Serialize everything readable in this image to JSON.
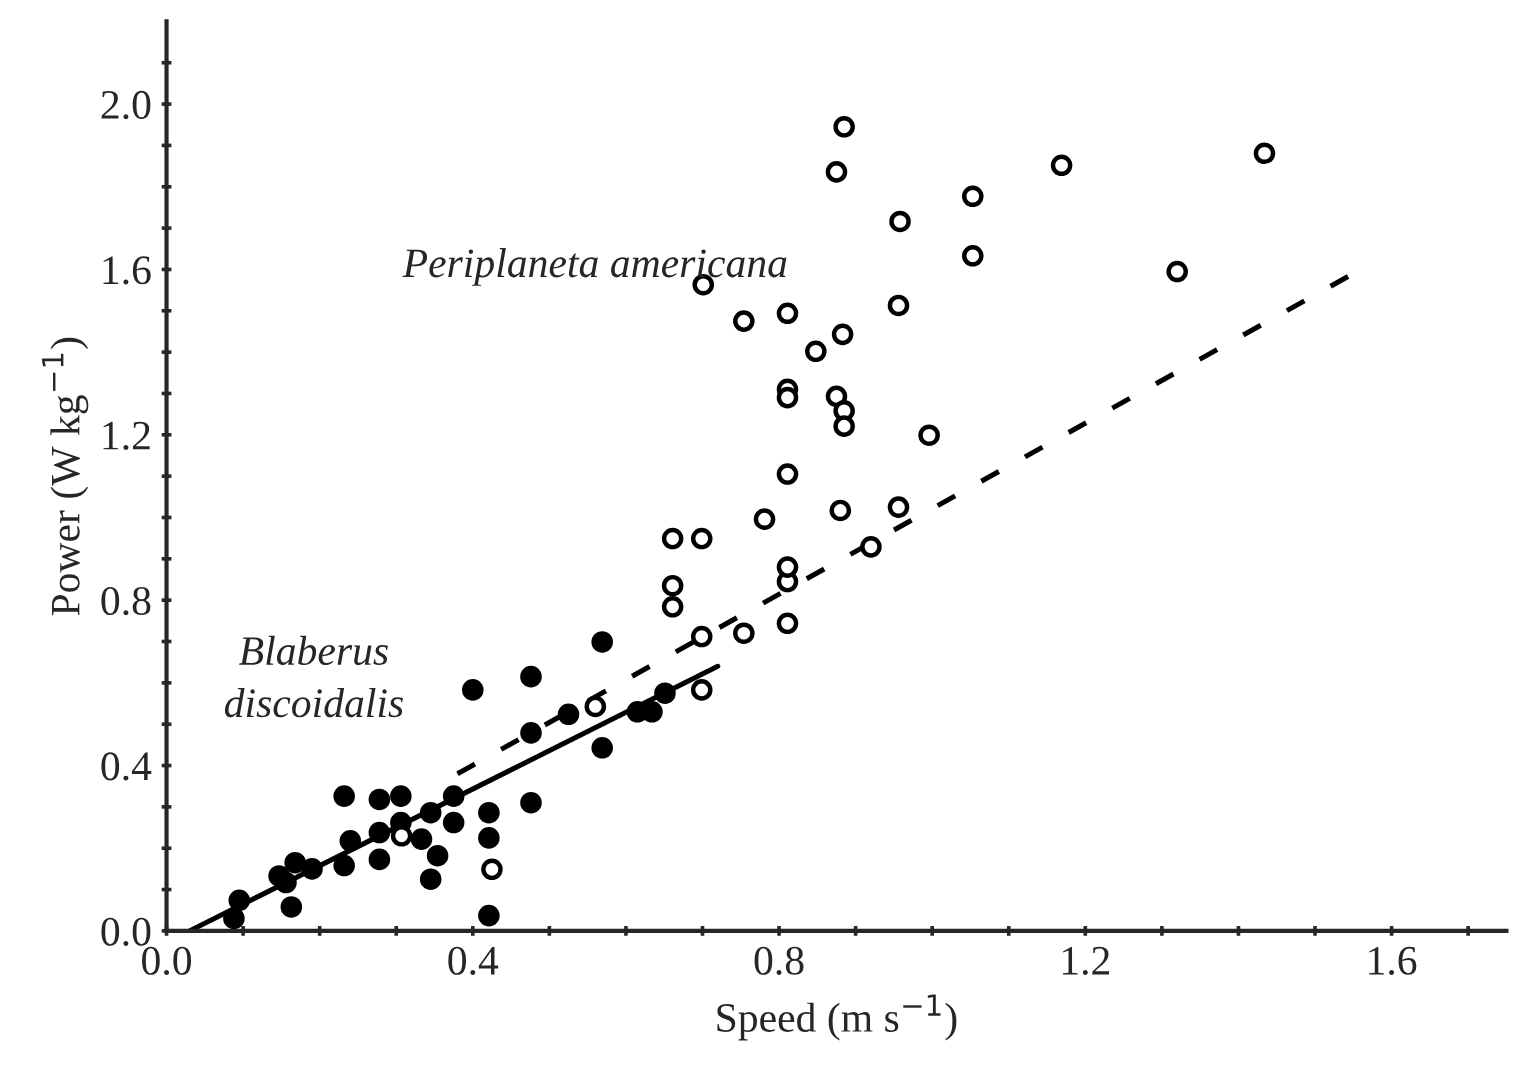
{
  "chart_data": {
    "type": "scatter",
    "xlabel": "Speed (m s$^{−1}$)",
    "ylabel": "Power (W kg$^{−1}$)",
    "xlim": [
      0,
      1.75
    ],
    "ylim": [
      0,
      2.2
    ],
    "xticks": [
      {
        "value": 0,
        "label": "0.0"
      },
      {
        "value": 0.1,
        "label": null
      },
      {
        "value": 0.2,
        "label": null
      },
      {
        "value": 0.3,
        "label": null
      },
      {
        "value": 0.4,
        "label": "0.4"
      },
      {
        "value": 0.5,
        "label": null
      },
      {
        "value": 0.6,
        "label": null
      },
      {
        "value": 0.7,
        "label": null
      },
      {
        "value": 0.8,
        "label": "0.8"
      },
      {
        "value": 0.9,
        "label": null
      },
      {
        "value": 1.0,
        "label": null
      },
      {
        "value": 1.1,
        "label": null
      },
      {
        "value": 1.2,
        "label": "1.2"
      },
      {
        "value": 1.3,
        "label": null
      },
      {
        "value": 1.4,
        "label": null
      },
      {
        "value": 1.5,
        "label": null
      },
      {
        "value": 1.6,
        "label": "1.6"
      },
      {
        "value": 1.7,
        "label": null
      }
    ],
    "yticks": [
      {
        "value": 0,
        "label": "0.0"
      },
      {
        "value": 0.1,
        "label": null
      },
      {
        "value": 0.2,
        "label": null
      },
      {
        "value": 0.3,
        "label": null
      },
      {
        "value": 0.4,
        "label": "0.4"
      },
      {
        "value": 0.5,
        "label": null
      },
      {
        "value": 0.6,
        "label": null
      },
      {
        "value": 0.7,
        "label": null
      },
      {
        "value": 0.8,
        "label": "0.8"
      },
      {
        "value": 0.9,
        "label": null
      },
      {
        "value": 1.0,
        "label": null
      },
      {
        "value": 1.1,
        "label": null
      },
      {
        "value": 1.2,
        "label": "1.2"
      },
      {
        "value": 1.3,
        "label": null
      },
      {
        "value": 1.4,
        "label": null
      },
      {
        "value": 1.5,
        "label": null
      },
      {
        "value": 1.6,
        "label": "1.6"
      },
      {
        "value": 1.7,
        "label": null
      },
      {
        "value": 1.8,
        "label": null
      },
      {
        "value": 1.9,
        "label": null
      },
      {
        "value": 2.0,
        "label": "2.0"
      },
      {
        "value": 2.1,
        "label": null
      }
    ],
    "grid": false,
    "legend": false,
    "marker": "circle",
    "annotations": [
      "Periplaneta americana",
      "Blaberus\ndiscoidalis"
    ],
    "series": [
      {
        "type": "scatter",
        "color": "#000000",
        "x": [
          0.095,
          0.088,
          0.147,
          0.168,
          0.156,
          0.163,
          0.19,
          0.232,
          0.24,
          0.232,
          0.278,
          0.278,
          0.278,
          0.306,
          0.306,
          0.333,
          0.345,
          0.354,
          0.345,
          0.375,
          0.375,
          0.4,
          0.421,
          0.421,
          0.421,
          0.476,
          0.476,
          0.476,
          0.569,
          0.525,
          0.569,
          0.615,
          0.634,
          0.651
        ],
        "values": [
          0.074,
          0.03,
          0.133,
          0.165,
          0.117,
          0.058,
          0.15,
          0.326,
          0.218,
          0.158,
          0.318,
          0.238,
          0.173,
          0.326,
          0.262,
          0.222,
          0.286,
          0.182,
          0.125,
          0.326,
          0.262,
          0.583,
          0.286,
          0.225,
          0.037,
          0.615,
          0.479,
          0.31,
          0.699,
          0.524,
          0.443,
          0.53,
          0.53,
          0.575
        ]
      },
      {
        "type": "scatter",
        "color": "#ffffff",
        "x": [
          0.425,
          0.307,
          0.56,
          0.699,
          0.699,
          0.754,
          0.661,
          0.661,
          0.661,
          0.699,
          0.781,
          0.811,
          0.811,
          0.811,
          0.88,
          0.92,
          0.956,
          0.885,
          0.875,
          1.053,
          0.958,
          1.053,
          0.701,
          0.754,
          0.811,
          0.956,
          0.883,
          0.848,
          0.811,
          0.811,
          0.875,
          0.885,
          0.885,
          0.996,
          0.811,
          1.169,
          1.434,
          1.32
        ],
        "values": [
          0.149,
          0.23,
          0.543,
          0.583,
          0.712,
          0.72,
          0.784,
          0.835,
          0.949,
          0.949,
          0.996,
          0.744,
          0.845,
          0.88,
          1.017,
          0.929,
          1.025,
          1.945,
          1.836,
          1.777,
          1.716,
          1.633,
          1.563,
          1.475,
          1.494,
          1.513,
          1.443,
          1.402,
          1.31,
          1.29,
          1.293,
          1.258,
          1.221,
          1.199,
          1.105,
          1.852,
          1.881,
          1.595
        ]
      },
      {
        "type": "line",
        "color": "#000000",
        "line_style": "solid",
        "marker": "none",
        "x": [
          0.03,
          0.72
        ],
        "values": [
          0,
          0.64
        ]
      },
      {
        "type": "line",
        "color": "#000000",
        "line_style": "dashed",
        "marker": "none",
        "x": [
          0.38,
          1.55
        ],
        "values": [
          0.38,
          1.59
        ]
      }
    ]
  }
}
